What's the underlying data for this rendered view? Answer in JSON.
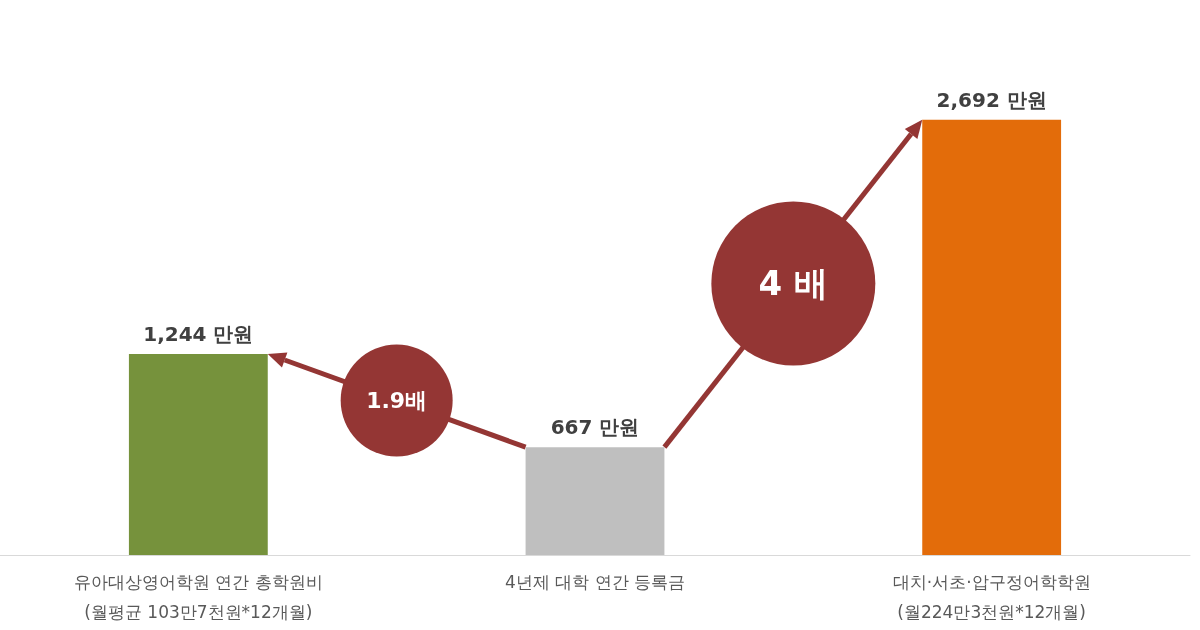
{
  "chart_data": {
    "type": "bar",
    "categories": [
      "유아대상영어학원 연간 총학원비\n(월평균 103만7천원*12개월)",
      "4년제 대학 연간 등록금",
      "대치·서초·압구정어학학원\n(월224만3천원*12개월)"
    ],
    "values": [
      1244,
      667,
      2692
    ],
    "value_labels": [
      "1,244 만원",
      "667 만원",
      "2,692 만원"
    ],
    "colors": [
      "#76923c",
      "#bfbfbf",
      "#e36c0a"
    ],
    "annotations": [
      "1.9배",
      "4 배"
    ]
  }
}
